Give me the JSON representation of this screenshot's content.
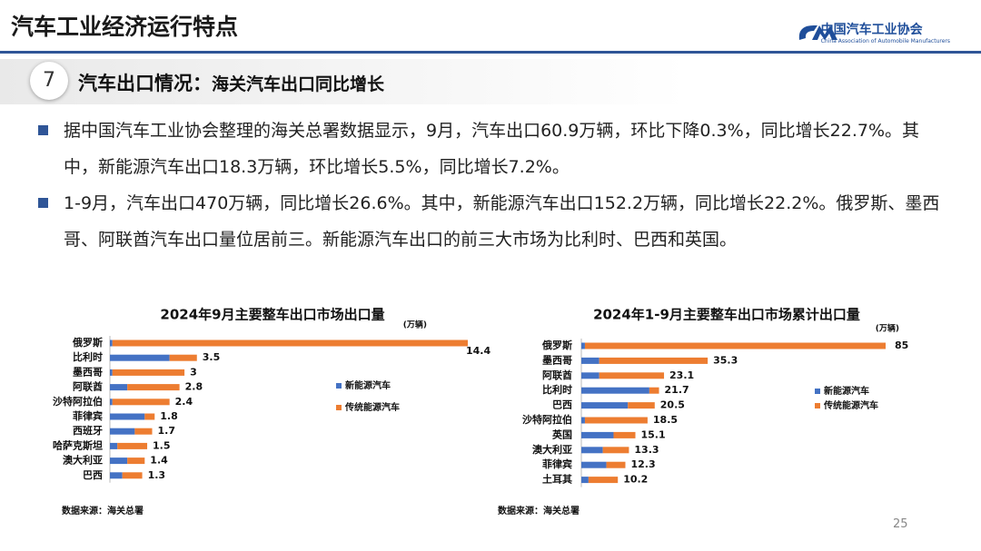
{
  "header": {
    "title": "汽车工业经济运行特点",
    "logo_name": "中国汽车工业协会",
    "logo_english": "China Association of Automobile Manufacturers"
  },
  "section": {
    "number": "7",
    "title": "汽车出口情况：",
    "subtitle": "海关汽车出口同比增长"
  },
  "bullets": [
    "据中国汽车工业协会整理的海关总署数据显示，9月，汽车出口60.9万辆，环比下降0.3%，同比增长22.7%。其中，新能源汽车出口18.3万辆，环比增长5.5%，同比增长7.2%。",
    "1-9月，汽车出口470万辆，同比增长26.6%。其中，新能源汽车出口152.2万辆，同比增长22.2%。俄罗斯、墨西哥、阿联酋汽车出口量位居前三。新能源汽车出口的前三大市场为比利时、巴西和英国。"
  ],
  "chart_data": [
    {
      "type": "stacked-bar-horizontal",
      "title": "2024年9月主要整车出口市场出口量",
      "unit": "(万辆)",
      "categories": [
        "俄罗斯",
        "比利时",
        "墨西哥",
        "阿联酋",
        "沙特阿拉伯",
        "菲律宾",
        "西班牙",
        "哈萨克斯坦",
        "澳大利亚",
        "巴西"
      ],
      "series": [
        {
          "name": "新能源汽车",
          "color": "#4472c4",
          "values": [
            0.1,
            2.4,
            0.1,
            0.7,
            0.1,
            1.4,
            1.0,
            0.3,
            0.7,
            0.5
          ]
        },
        {
          "name": "传统能源汽车",
          "color": "#ed7d31",
          "values": [
            14.3,
            1.1,
            2.9,
            2.1,
            2.3,
            0.4,
            0.7,
            1.2,
            0.7,
            0.8
          ]
        }
      ],
      "totals": [
        14.4,
        3.5,
        3.0,
        2.8,
        2.4,
        1.8,
        1.7,
        1.5,
        1.4,
        1.3
      ],
      "source": "数据来源：海关总署"
    },
    {
      "type": "stacked-bar-horizontal",
      "title": "2024年1-9月主要整车出口市场累计出口量",
      "unit": "(万辆)",
      "categories": [
        "俄罗斯",
        "墨西哥",
        "阿联酋",
        "比利时",
        "巴西",
        "沙特阿拉伯",
        "英国",
        "澳大利亚",
        "菲律宾",
        "土耳其"
      ],
      "series": [
        {
          "name": "新能源汽车",
          "color": "#4472c4",
          "values": [
            1.0,
            5.0,
            5.0,
            19.0,
            13.0,
            1.0,
            9.0,
            6.0,
            7.0,
            2.0
          ]
        },
        {
          "name": "传统能源汽车",
          "color": "#ed7d31",
          "values": [
            84.0,
            30.3,
            18.1,
            2.7,
            7.5,
            17.5,
            6.1,
            7.3,
            5.3,
            8.2
          ]
        }
      ],
      "totals": [
        85.0,
        35.3,
        23.1,
        21.7,
        20.5,
        18.5,
        15.1,
        13.3,
        12.3,
        10.2
      ],
      "source": "数据来源：海关总署"
    }
  ],
  "page_number": "25"
}
